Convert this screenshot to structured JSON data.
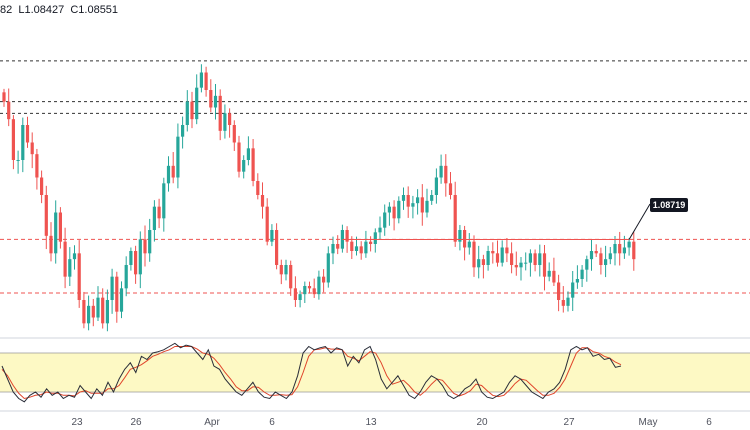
{
  "ohlc_label": "82  L1.08427  C1.08551",
  "colors": {
    "up": "#26a69a",
    "down": "#ef5350",
    "stoch_k": "#2a2e39",
    "stoch_d": "#e0452b",
    "stoch_band": "#fdf9c4",
    "red_level": "#ef5350",
    "dark_level": "#333333",
    "tag_bg": "#131722",
    "axis_text": "#50535e"
  },
  "chart_data": {
    "type": "candlestick",
    "symbol_watermark_visible": true,
    "x_tick_labels": [
      "23",
      "26",
      "Apr",
      "6",
      "13",
      "20",
      "27",
      "May",
      "6"
    ],
    "price_tag": "1.08719",
    "ylim": [
      1.079,
      1.106
    ],
    "levels": [
      {
        "price": 1.1025,
        "style": "dashed",
        "color": "dark"
      },
      {
        "price": 1.099,
        "style": "dashed",
        "color": "dark"
      },
      {
        "price": 1.098,
        "style": "dashed",
        "color": "dark"
      },
      {
        "price": 1.0872,
        "style": "dashed",
        "color": "red"
      },
      {
        "price": 1.0826,
        "style": "dashed",
        "color": "red"
      }
    ],
    "resistance_line": {
      "from_index": 72,
      "to_index": 133,
      "price": 1.08719
    },
    "close": [
      1.099,
      1.0975,
      1.094,
      1.094,
      1.097,
      1.0955,
      1.0945,
      1.0925,
      1.091,
      1.0875,
      1.086,
      1.0895,
      1.087,
      1.084,
      1.0855,
      1.086,
      1.082,
      1.08,
      1.0815,
      1.0805,
      1.0822,
      1.08,
      1.082,
      1.084,
      1.081,
      1.083,
      1.085,
      1.0862,
      1.0842,
      1.0872,
      1.086,
      1.088,
      1.09,
      1.089,
      1.092,
      1.0935,
      1.0925,
      1.096,
      1.097,
      1.099,
      1.0975,
      1.1002,
      1.1015,
      1.1,
      1.0985,
      1.0995,
      1.0965,
      1.098,
      1.097,
      1.0955,
      1.093,
      1.094,
      1.095,
      1.0922,
      1.091,
      1.09,
      1.087,
      1.088,
      1.085,
      1.0842,
      1.085,
      1.083,
      1.082,
      1.0825,
      1.0832,
      1.083,
      1.0825,
      1.084,
      1.0835,
      1.086,
      1.0868,
      1.0864,
      1.088,
      1.087,
      1.0862,
      1.0866,
      1.086,
      1.087,
      1.0868,
      1.0878,
      1.0882,
      1.0895,
      1.09,
      1.089,
      1.0905,
      1.091,
      1.09,
      1.0903,
      1.0908,
      1.0895,
      1.0905,
      1.091,
      1.0925,
      1.0935,
      1.092,
      1.091,
      1.087,
      1.088,
      1.0865,
      1.087,
      1.0848,
      1.0855,
      1.085,
      1.0862,
      1.086,
      1.0852,
      1.0865,
      1.086,
      1.085,
      1.0848,
      1.0852,
      1.0852,
      1.086,
      1.085,
      1.086,
      1.084,
      1.0845,
      1.0835,
      1.082,
      1.0815,
      1.0822,
      1.0835,
      1.0838,
      1.0846,
      1.0855,
      1.0862,
      1.086,
      1.085,
      1.0855,
      1.086,
      1.0868,
      1.086,
      1.0865,
      1.087,
      1.0855
    ],
    "stochastic": {
      "k": [
        60,
        40,
        20,
        10,
        5,
        15,
        20,
        12,
        25,
        15,
        20,
        10,
        15,
        12,
        30,
        20,
        10,
        25,
        15,
        35,
        20,
        40,
        55,
        65,
        50,
        75,
        70,
        80,
        82,
        85,
        90,
        95,
        88,
        92,
        90,
        80,
        70,
        85,
        60,
        55,
        40,
        30,
        20,
        15,
        25,
        35,
        20,
        12,
        10,
        20,
        15,
        10,
        20,
        45,
        80,
        90,
        85,
        88,
        90,
        80,
        88,
        85,
        60,
        75,
        65,
        85,
        90,
        70,
        40,
        25,
        35,
        45,
        30,
        15,
        10,
        20,
        35,
        45,
        40,
        30,
        15,
        10,
        15,
        25,
        30,
        40,
        20,
        12,
        10,
        15,
        20,
        35,
        45,
        40,
        30,
        20,
        15,
        10,
        20,
        25,
        35,
        55,
        85,
        90,
        85,
        88,
        75,
        78,
        70,
        72,
        58,
        60
      ],
      "d": [
        55,
        45,
        30,
        18,
        10,
        12,
        15,
        16,
        20,
        18,
        18,
        15,
        15,
        14,
        20,
        22,
        18,
        18,
        18,
        25,
        25,
        30,
        42,
        55,
        58,
        62,
        68,
        75,
        78,
        82,
        85,
        90,
        90,
        90,
        90,
        86,
        80,
        78,
        72,
        62,
        50,
        40,
        28,
        22,
        22,
        28,
        27,
        20,
        15,
        15,
        16,
        15,
        16,
        28,
        50,
        75,
        85,
        86,
        88,
        86,
        86,
        85,
        75,
        72,
        68,
        75,
        82,
        80,
        65,
        45,
        32,
        35,
        38,
        30,
        20,
        15,
        22,
        32,
        40,
        38,
        28,
        18,
        14,
        17,
        22,
        32,
        30,
        22,
        15,
        13,
        15,
        23,
        33,
        40,
        38,
        30,
        22,
        15,
        15,
        18,
        27,
        40,
        60,
        80,
        88,
        88,
        82,
        80,
        75,
        72,
        66,
        62
      ]
    }
  }
}
